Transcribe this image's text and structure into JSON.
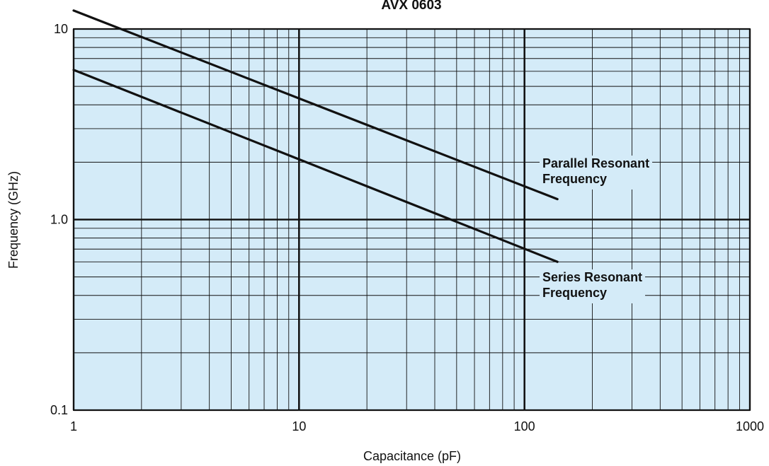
{
  "chart_data": {
    "type": "line",
    "title": "AVX 0603",
    "xlabel": "Capacitance (pF)",
    "ylabel": "Frequency (GHz)",
    "x_scale": "log",
    "y_scale": "log",
    "xlim": [
      1,
      1000
    ],
    "ylim": [
      0.1,
      10
    ],
    "x_tick_labels": [
      "1",
      "10",
      "100",
      "1000"
    ],
    "y_tick_labels": [
      "0.1",
      "1.0",
      "10"
    ],
    "grid": true,
    "colors": {
      "plot_background": "#d4ebf8",
      "grid": "#111111",
      "series": "#111111"
    },
    "series": [
      {
        "name": "Parallel Resonant Frequency",
        "x": [
          1,
          140
        ],
        "y": [
          12.5,
          1.28
        ]
      },
      {
        "name": "Series Resonant Frequency",
        "x": [
          1,
          140
        ],
        "y": [
          6.1,
          0.6
        ]
      }
    ],
    "annotations": [
      {
        "series": 0,
        "lines": [
          "Parallel Resonant",
          "Frequency"
        ]
      },
      {
        "series": 1,
        "lines": [
          "Series Resonant",
          "Frequency"
        ]
      }
    ]
  }
}
